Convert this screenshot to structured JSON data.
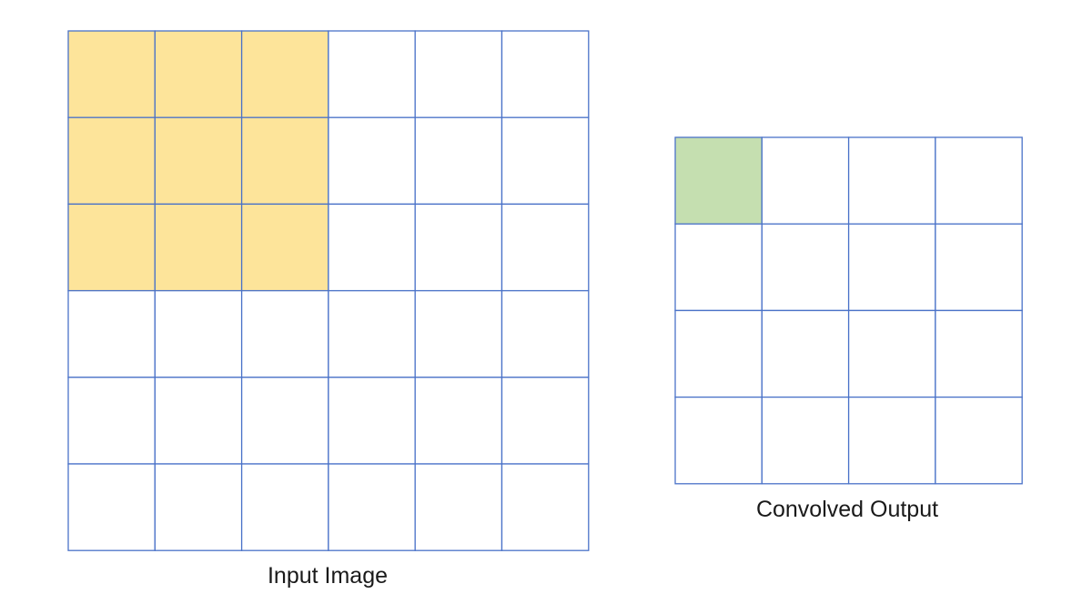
{
  "input_grid": {
    "caption": "Input Image",
    "rows": 6,
    "cols": 6,
    "highlight": {
      "rows": 3,
      "cols": 3,
      "color": "#fde49a"
    }
  },
  "output_grid": {
    "caption": "Convolved Output",
    "rows": 4,
    "cols": 4,
    "highlight": {
      "rows": 1,
      "cols": 1,
      "color": "#c5dfb0"
    }
  },
  "colors": {
    "grid_line": "#4a72c8",
    "cell_fill": "#ffffff"
  }
}
